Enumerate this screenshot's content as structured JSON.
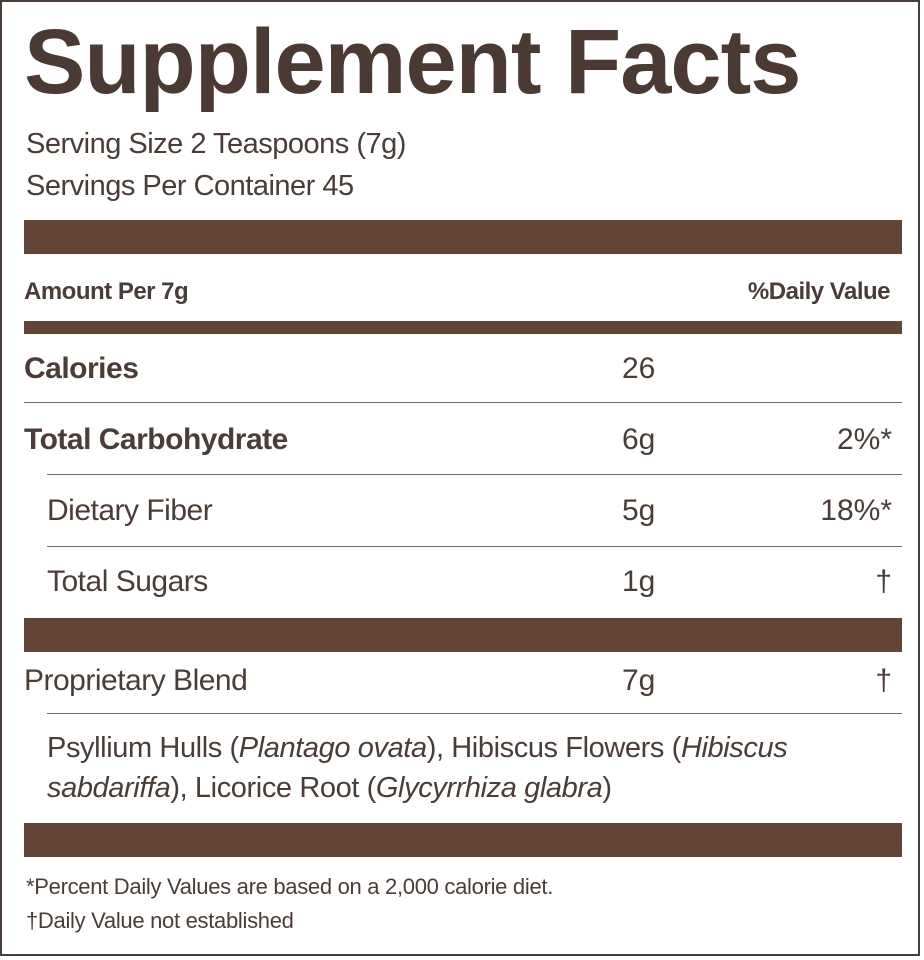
{
  "title": "Supplement Facts",
  "serving_size": "Serving Size 2 Teaspoons (7g)",
  "servings_per_container": "Servings Per Container 45",
  "header": {
    "amount_per": "Amount Per 7g",
    "daily_value": "%Daily Value"
  },
  "rows": [
    {
      "name": "Calories",
      "amount": "26",
      "dv": ""
    },
    {
      "name": "Total Carbohydrate",
      "amount": "6g",
      "dv": "2%*"
    },
    {
      "name": "Dietary Fiber",
      "amount": "5g",
      "dv": "18%*"
    },
    {
      "name": "Total Sugars",
      "amount": "1g",
      "dv": "†"
    },
    {
      "name": "Proprietary Blend",
      "amount": "7g",
      "dv": "†"
    }
  ],
  "ingredients": [
    {
      "text": "Psyllium Hulls (",
      "italic": false
    },
    {
      "text": "Plantago ovata",
      "italic": true
    },
    {
      "text": "), Hibiscus Flowers (",
      "italic": false
    },
    {
      "text": "Hibiscus sabdariffa",
      "italic": true
    },
    {
      "text": "), Licorice Root (",
      "italic": false
    },
    {
      "text": "Glycyrrhiza glabra",
      "italic": true
    },
    {
      "text": ")",
      "italic": false
    }
  ],
  "footnotes": [
    "*Percent Daily Values are based on a 2,000 calorie diet.",
    "†Daily Value not established"
  ],
  "colors": {
    "bar": "#634538",
    "text": "#4a3d37"
  }
}
